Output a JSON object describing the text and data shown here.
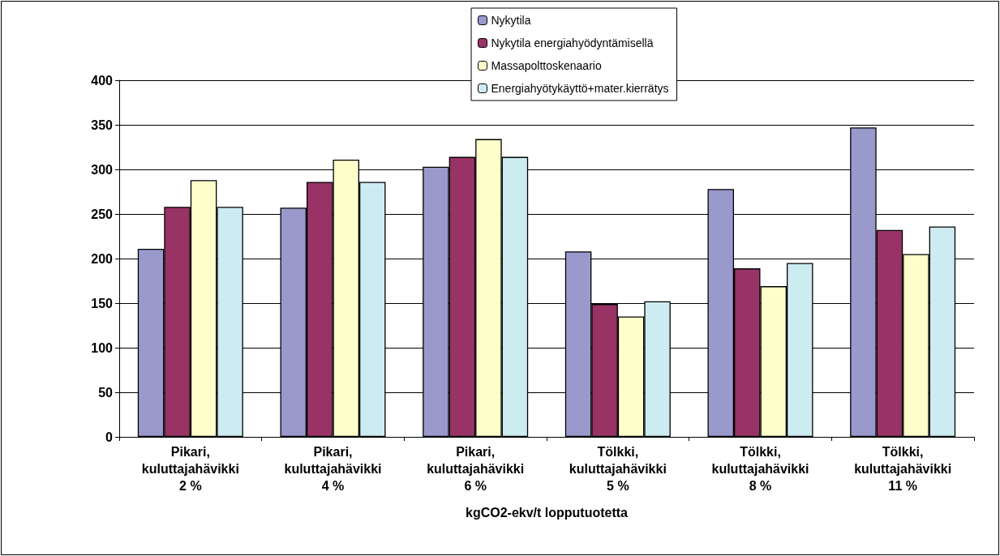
{
  "chart_data": {
    "type": "bar",
    "xlabel": "kgCO2-ekv/t lopputuotetta",
    "categories": [
      "Pikari,\nkuluttajahävikki\n2 %",
      "Pikari,\nkuluttajahävikki\n4 %",
      "Pikari,\nkuluttajahävikki\n6 %",
      "Tölkki,\nkuluttajahävikki\n5 %",
      "Tölkki,\nkuluttajahävikki\n8 %",
      "Tölkki,\nkuluttajahävikki\n11 %"
    ],
    "series": [
      {
        "name": "Nykytila",
        "color": "#9999cc",
        "values": [
          211,
          257,
          303,
          208,
          278,
          347
        ]
      },
      {
        "name": "Nykytila energiahyödyntämisellä",
        "color": "#993366",
        "values": [
          258,
          286,
          314,
          149,
          189,
          232
        ]
      },
      {
        "name": "Massapolttoskenaario",
        "color": "#ffffcc",
        "values": [
          288,
          311,
          334,
          135,
          169,
          205
        ]
      },
      {
        "name": "Energiahyötykäyttö+mater.kierrätys",
        "color": "#ccecf2",
        "values": [
          258,
          286,
          314,
          152,
          195,
          236
        ]
      }
    ],
    "ylim": [
      0,
      400
    ],
    "yticks": [
      0,
      50,
      100,
      150,
      200,
      250,
      300,
      350,
      400
    ],
    "grid": "y",
    "legend": "top"
  }
}
